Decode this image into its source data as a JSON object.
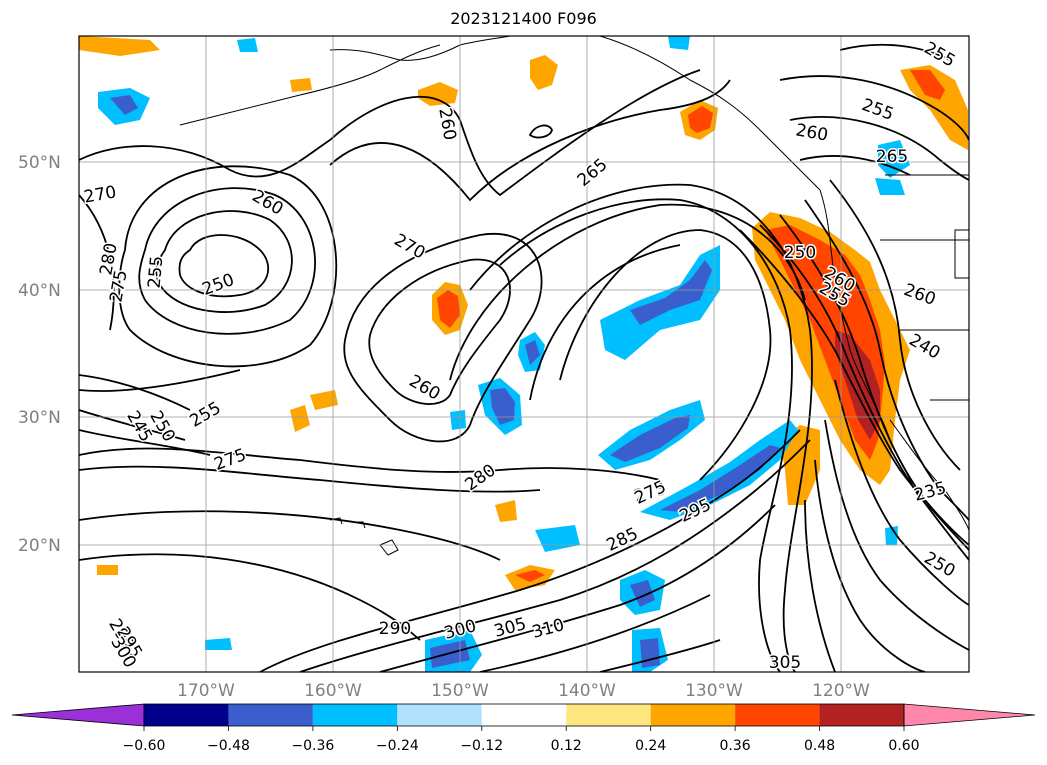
{
  "title": "2023121400 F096",
  "lat_labels": [
    "50°N",
    "40°N",
    "30°N",
    "20°N"
  ],
  "lon_labels": [
    "170°W",
    "160°W",
    "150°W",
    "140°W",
    "130°W",
    "120°W"
  ],
  "colorbar": {
    "ticks": [
      "−0.60",
      "−0.48",
      "−0.36",
      "−0.24",
      "−0.12",
      "0.12",
      "0.24",
      "0.36",
      "0.48",
      "0.60"
    ],
    "colors": [
      "#9b30d8",
      "#00008b",
      "#3a5fcd",
      "#00bfff",
      "#b0e2ff",
      "#ffffff",
      "#ffe680",
      "#ffa500",
      "#ff4500",
      "#b22222",
      "#ff88aa"
    ]
  },
  "contour_labels": [
    {
      "text": "260",
      "rot": 80
    },
    {
      "text": "255",
      "rot": 30
    },
    {
      "text": "255",
      "rot": 20
    },
    {
      "text": "260",
      "rot": 10
    },
    {
      "text": "265",
      "rot": 0
    },
    {
      "text": "265",
      "rot": -40
    },
    {
      "text": "270",
      "rot": 30
    },
    {
      "text": "260",
      "rot": 30
    },
    {
      "text": "255",
      "rot": -85
    },
    {
      "text": "250",
      "rot": -20
    },
    {
      "text": "280",
      "rot": -80
    },
    {
      "text": "275",
      "rot": -80
    },
    {
      "text": "270",
      "rot": -10
    },
    {
      "text": "250",
      "rot": 0
    },
    {
      "text": "255",
      "rot": 30
    },
    {
      "text": "260",
      "rot": 30
    },
    {
      "text": "240",
      "rot": 30
    },
    {
      "text": "260",
      "rot": 20
    },
    {
      "text": "275",
      "rot": -20
    },
    {
      "text": "260",
      "rot": 30
    },
    {
      "text": "245",
      "rot": 60
    },
    {
      "text": "250",
      "rot": 60
    },
    {
      "text": "255",
      "rot": -30
    },
    {
      "text": "275",
      "rot": -15
    },
    {
      "text": "280",
      "rot": -35
    },
    {
      "text": "275",
      "rot": -25
    },
    {
      "text": "285",
      "rot": -25
    },
    {
      "text": "295",
      "rot": -25
    },
    {
      "text": "235",
      "rot": -15
    },
    {
      "text": "250",
      "rot": 30
    },
    {
      "text": "290",
      "rot": 0
    },
    {
      "text": "300",
      "rot": -15
    },
    {
      "text": "305",
      "rot": -15
    },
    {
      "text": "310",
      "rot": -15
    },
    {
      "text": "290",
      "rot": 60
    },
    {
      "text": "295",
      "rot": 60
    },
    {
      "text": "300",
      "rot": 60
    },
    {
      "text": "305",
      "rot": 0
    }
  ]
}
